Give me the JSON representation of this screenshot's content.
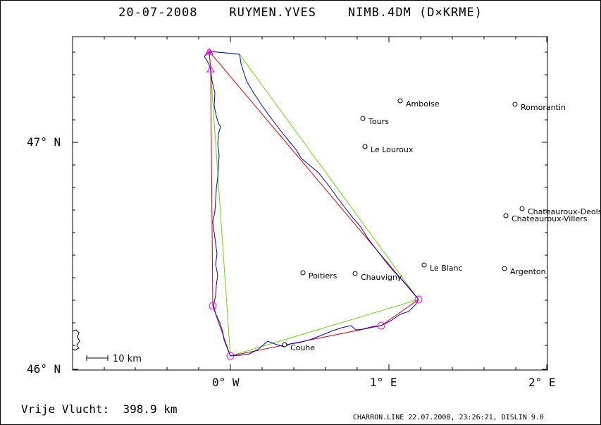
{
  "header": {
    "title": "20-07-2008    RUYMEN.YVES    NIMB.4DM (D×KRME)"
  },
  "axes": {
    "y_labels": {
      "top": "47° N",
      "bottom": "46° N"
    },
    "x_labels": {
      "left": "0° W",
      "mid": "1° E",
      "right": "2° E"
    }
  },
  "towns": [
    {
      "name": "Amboise"
    },
    {
      "name": "Romorantin"
    },
    {
      "name": "Tours"
    },
    {
      "name": "Le Louroux"
    },
    {
      "name": "Chateauroux-Deols"
    },
    {
      "name": "Chateauroux-Villers"
    },
    {
      "name": "Le Blanc"
    },
    {
      "name": "Argenton"
    },
    {
      "name": "Poitiers"
    },
    {
      "name": "Chauvigny"
    },
    {
      "name": "Couhe"
    }
  ],
  "scale": {
    "label": "10 km"
  },
  "summary": {
    "free_flight": "Vrije Vlucht:  398.9 km"
  },
  "footer": {
    "text": "CHARRON.LINE 22.07.2008, 23:26:21, DISLIN 9.0"
  },
  "colors": {
    "track": "#0000cc",
    "optimized": "#e00000",
    "declared": "#66dd00",
    "turnpoint": "#ff00ff"
  }
}
